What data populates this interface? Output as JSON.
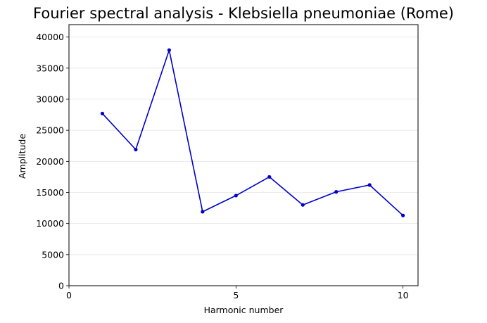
{
  "chart_data": {
    "type": "line",
    "title": "Fourier spectral analysis - Klebsiella pneumoniae (Rome)",
    "xlabel": "Harmonic number",
    "ylabel": "Amplitude",
    "xlim": [
      0,
      10.45
    ],
    "ylim": [
      0,
      42000
    ],
    "xticks": [
      0,
      5,
      10
    ],
    "yticks": [
      0,
      5000,
      10000,
      15000,
      20000,
      25000,
      30000,
      35000,
      40000
    ],
    "grid": "horizontal",
    "series": [
      {
        "color": "#0000cc",
        "marker": "circle",
        "x": [
          1,
          2,
          3,
          4,
          5,
          6,
          7,
          8,
          9,
          10
        ],
        "y": [
          27700,
          21900,
          37900,
          11900,
          14500,
          17500,
          13000,
          15100,
          16200,
          11300
        ]
      }
    ]
  }
}
